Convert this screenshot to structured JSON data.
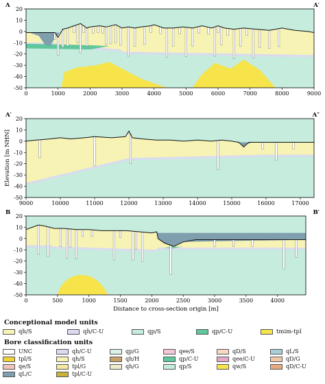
{
  "chart_data": [
    {
      "type": "area",
      "left_label": "A",
      "right_label": "A′",
      "xlim": [
        0,
        9000
      ],
      "ylim": [
        -50,
        20
      ],
      "xticks": [
        0,
        1000,
        2000,
        3000,
        4000,
        5000,
        6000,
        7000,
        8000,
        9000
      ],
      "yticks": [
        20,
        10,
        0,
        -10,
        -20,
        -30,
        -40,
        -50
      ],
      "surface": [
        [
          0,
          -1
        ],
        [
          600,
          -1
        ],
        [
          900,
          -1
        ],
        [
          1000,
          -5
        ],
        [
          1150,
          2
        ],
        [
          1300,
          3
        ],
        [
          1500,
          5
        ],
        [
          1700,
          7
        ],
        [
          1900,
          3
        ],
        [
          2000,
          4
        ],
        [
          2300,
          5
        ],
        [
          2500,
          4
        ],
        [
          2800,
          6
        ],
        [
          3000,
          3
        ],
        [
          3200,
          4
        ],
        [
          3400,
          3
        ],
        [
          3600,
          4
        ],
        [
          3900,
          5
        ],
        [
          4000,
          6
        ],
        [
          4300,
          3
        ],
        [
          4600,
          3
        ],
        [
          4900,
          4
        ],
        [
          5200,
          3
        ],
        [
          5500,
          5
        ],
        [
          5800,
          3
        ],
        [
          6000,
          5
        ],
        [
          6200,
          3
        ],
        [
          6500,
          2
        ],
        [
          6800,
          3
        ],
        [
          7200,
          2
        ],
        [
          7600,
          1
        ],
        [
          8000,
          3
        ],
        [
          8400,
          1
        ],
        [
          8800,
          0
        ],
        [
          9000,
          -1
        ]
      ],
      "bores": [
        900,
        1000,
        1150,
        1300,
        1500,
        1600,
        1700,
        1800,
        1900,
        2100,
        2250,
        2400,
        2500,
        2650,
        2800,
        2950,
        3200,
        3400,
        3700,
        3900,
        4200,
        4400,
        4600,
        4800,
        5000,
        5200,
        5400,
        5700,
        5900,
        6000,
        6100,
        6300,
        6500,
        6700,
        6900,
        7100,
        7300,
        7600,
        7900
      ]
    },
    {
      "type": "area",
      "left_label": "A′",
      "right_label": "A″",
      "xlim": [
        9000,
        17400
      ],
      "ylim": [
        -50,
        20
      ],
      "xticks": [
        9000,
        10000,
        11000,
        12000,
        13000,
        14000,
        15000,
        16000,
        17000
      ],
      "yticks": [
        20,
        10,
        0,
        -10,
        -20,
        -30,
        -40,
        -50
      ],
      "ylabel": "Elevation [m NHN]",
      "surface": [
        [
          9000,
          0
        ],
        [
          9300,
          1
        ],
        [
          9700,
          2
        ],
        [
          10000,
          3
        ],
        [
          10300,
          2
        ],
        [
          10700,
          3
        ],
        [
          11000,
          4
        ],
        [
          11500,
          3
        ],
        [
          11900,
          4
        ],
        [
          12000,
          9
        ],
        [
          12100,
          3
        ],
        [
          12400,
          2
        ],
        [
          12800,
          1
        ],
        [
          13200,
          1
        ],
        [
          13600,
          0
        ],
        [
          14000,
          1
        ],
        [
          14400,
          0
        ],
        [
          14700,
          1
        ],
        [
          15000,
          0
        ],
        [
          15200,
          -1
        ],
        [
          15350,
          -5
        ],
        [
          15500,
          -1
        ],
        [
          15700,
          -1
        ],
        [
          16000,
          -1
        ],
        [
          16400,
          -1
        ],
        [
          16800,
          -1
        ],
        [
          17400,
          -1
        ]
      ],
      "bores": [
        9400,
        11000,
        12050,
        14600,
        15900,
        16300,
        16800
      ]
    },
    {
      "type": "area",
      "left_label": "B",
      "right_label": "B′",
      "xlim": [
        0,
        4450
      ],
      "ylim": [
        -50,
        20
      ],
      "xticks": [
        0,
        500,
        1000,
        1500,
        2000,
        2500,
        3000,
        3500,
        4000
      ],
      "yticks": [
        20,
        10,
        0,
        -10,
        -20,
        -30,
        -40,
        -50
      ],
      "xlabel": "Distance to cross-section origin [m]",
      "surface": [
        [
          0,
          8
        ],
        [
          100,
          10
        ],
        [
          200,
          12
        ],
        [
          300,
          11
        ],
        [
          450,
          9
        ],
        [
          600,
          9
        ],
        [
          800,
          8
        ],
        [
          1000,
          8
        ],
        [
          1200,
          7
        ],
        [
          1400,
          7
        ],
        [
          1600,
          7
        ],
        [
          1800,
          6
        ],
        [
          2000,
          5
        ],
        [
          2080,
          6
        ],
        [
          2100,
          0
        ],
        [
          2200,
          -4
        ],
        [
          2350,
          -7
        ],
        [
          2500,
          -3
        ],
        [
          2700,
          -1
        ],
        [
          3000,
          -1
        ],
        [
          3300,
          -1
        ],
        [
          3600,
          -1
        ],
        [
          3900,
          -1
        ],
        [
          4200,
          -1
        ],
        [
          4450,
          -1
        ]
      ],
      "bores": [
        200,
        350,
        550,
        650,
        700,
        800,
        900,
        1050,
        1400,
        1500,
        1700,
        1750,
        1850,
        2300,
        3000,
        3300,
        3600,
        4100,
        4300
      ]
    }
  ],
  "legend": {
    "model_title": "Conceptional model units",
    "model_units": [
      {
        "label": "qh/S",
        "color": "#f7f3b5"
      },
      {
        "label": "qh/C-U",
        "color": "#dcdaf0"
      },
      {
        "label": "qp/S",
        "color": "#c5ecdc"
      },
      {
        "label": "qp/C-U",
        "color": "#5fc79b"
      },
      {
        "label": "tmim-tpl",
        "color": "#f7e34a"
      }
    ],
    "bore_title": "Bore classification units",
    "bore_units": [
      {
        "label": "UNC",
        "color": "#ffffff"
      },
      {
        "label": "qh/C-U",
        "color": "#dcdaf0"
      },
      {
        "label": "qp/G",
        "color": "#d8f2e6"
      },
      {
        "label": "qee/S",
        "color": "#f3c7da"
      },
      {
        "label": "qD/S",
        "color": "#f6d8c4"
      },
      {
        "label": "qL/S",
        "color": "#a9cfd9"
      },
      {
        "label": "tpl/S",
        "color": "#f0d23a"
      },
      {
        "label": "qh/S",
        "color": "#f7f3b5"
      },
      {
        "label": "qh/H",
        "color": "#c8a06a"
      },
      {
        "label": "qp/C-U",
        "color": "#5fc79b"
      },
      {
        "label": "qee/C-U",
        "color": "#e4a9c6"
      },
      {
        "label": "qD/G",
        "color": "#f2c9a7"
      },
      {
        "label": "qe/S",
        "color": "#f0c4b8"
      },
      {
        "label": "tpl/G",
        "color": "#f5e7a0"
      },
      {
        "label": "qh/G",
        "color": "#eeeacb"
      },
      {
        "label": "qp/S",
        "color": "#c5ecdc"
      },
      {
        "label": "qw/S",
        "color": "#f7e34a"
      },
      {
        "label": "qD/C-U",
        "color": "#e9a97f"
      },
      {
        "label": "qL/C",
        "color": "#7f9fae"
      },
      {
        "label": "tpl/C-U",
        "color": "#c9b235"
      }
    ]
  }
}
